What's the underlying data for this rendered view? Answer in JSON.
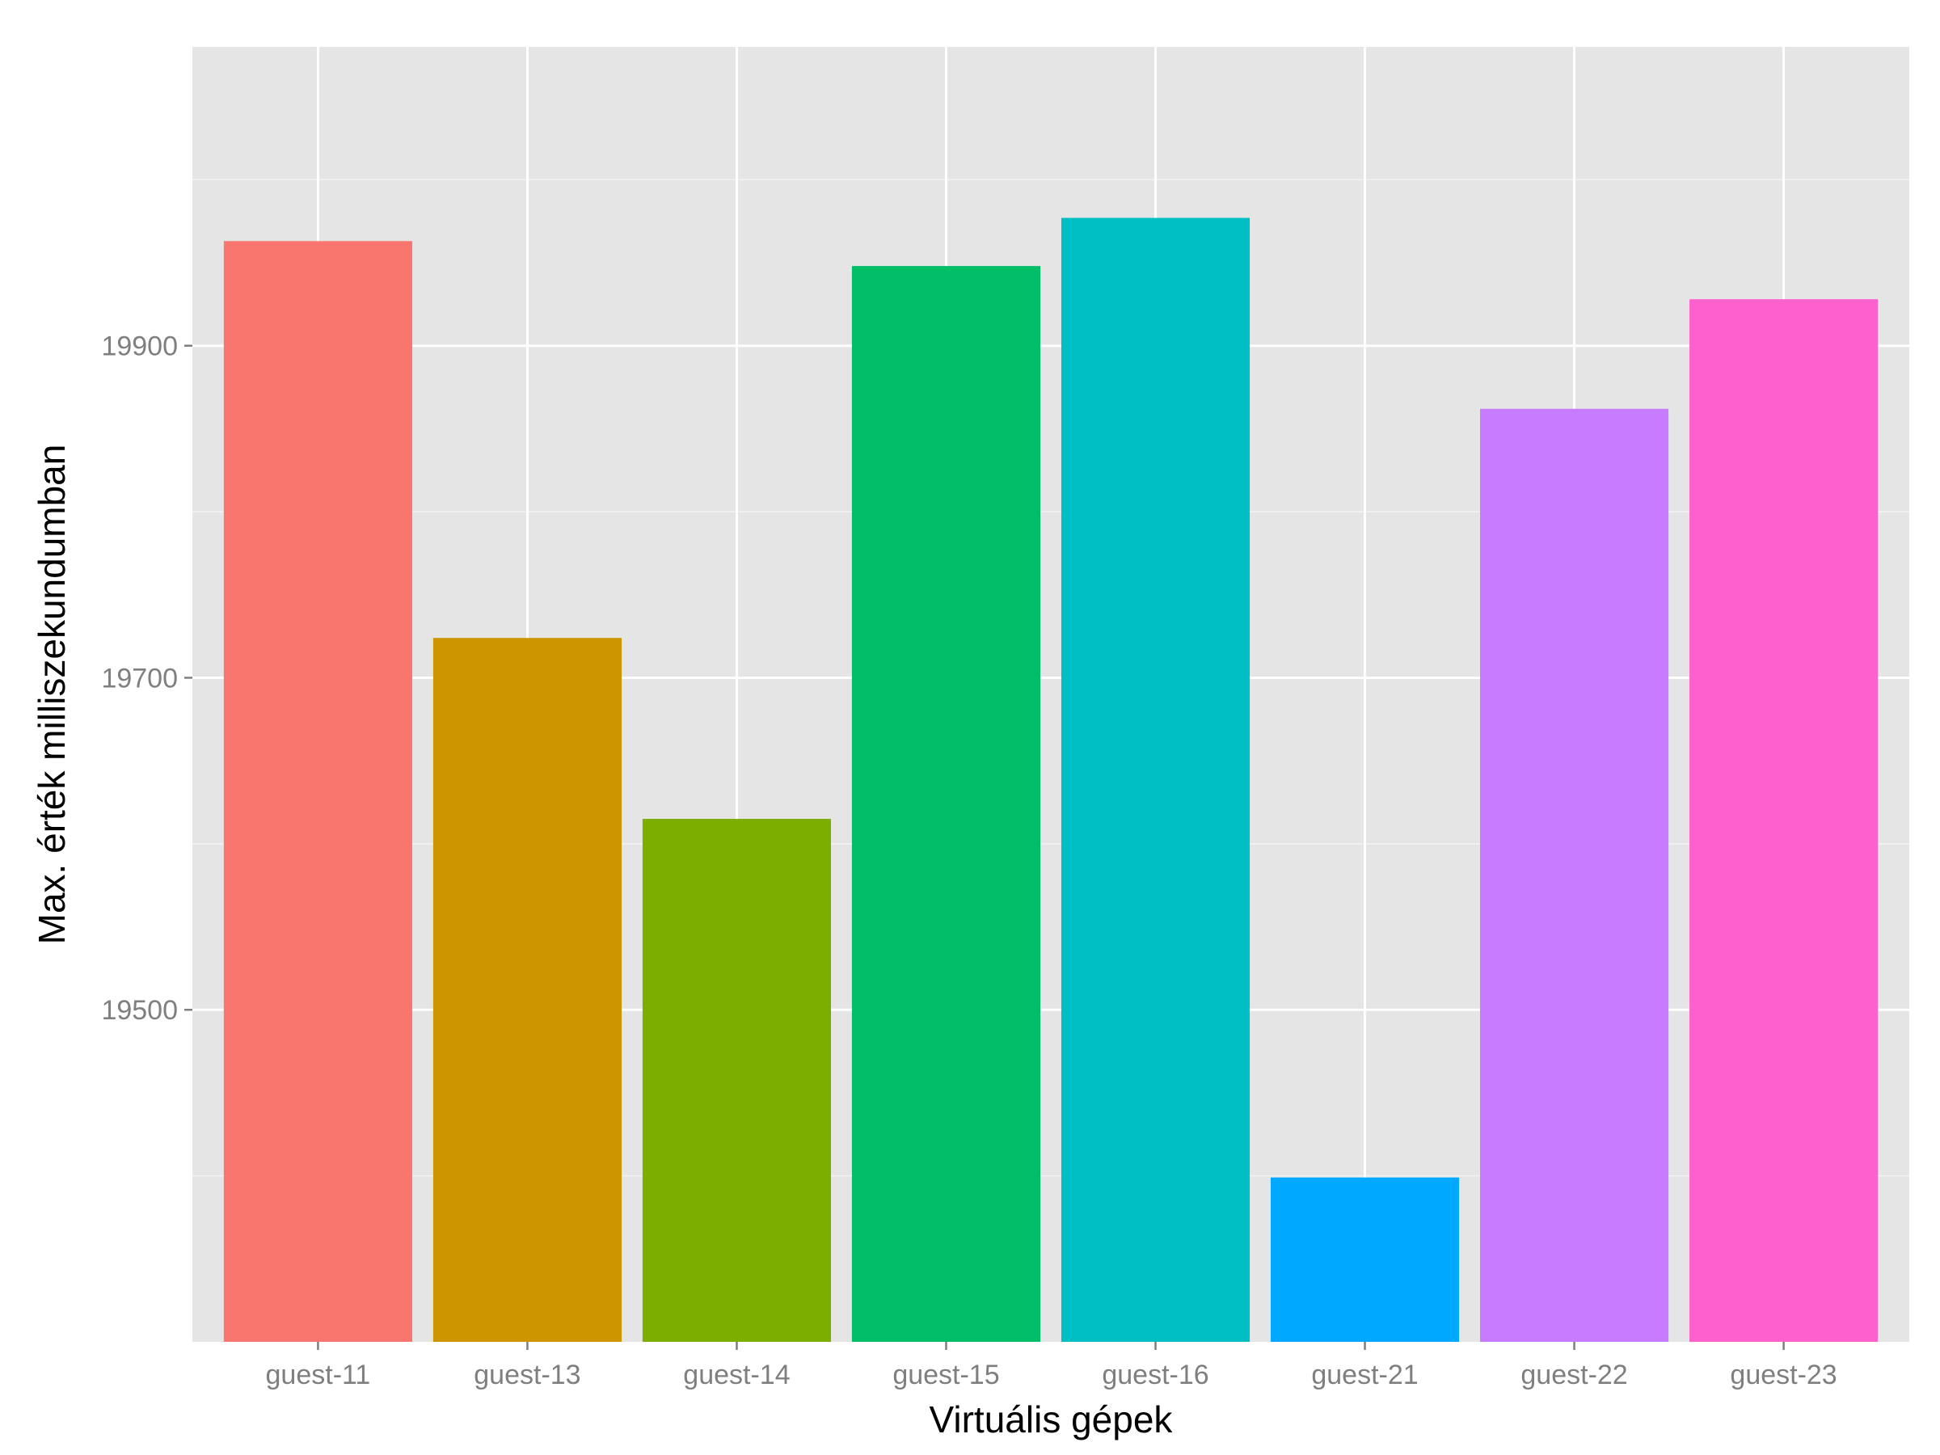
{
  "chart_data": {
    "type": "bar",
    "title": "",
    "xlabel": "Virtuális gépek",
    "ylabel": "Max. érték milliszekundumban",
    "categories": [
      "guest-11",
      "guest-13",
      "guest-14",
      "guest-15",
      "guest-16",
      "guest-21",
      "guest-22",
      "guest-23"
    ],
    "values": [
      19963,
      19724,
      19615,
      19948,
      19977,
      19399,
      19862,
      19928
    ],
    "colors": [
      "#F8766D",
      "#CD9600",
      "#7CAE00",
      "#00BE67",
      "#00BFC4",
      "#00A9FF",
      "#C77CFF",
      "#FF61CC"
    ],
    "ylim": [
      19300,
      20080
    ],
    "yticks": [
      19500,
      19700,
      19900
    ],
    "ytick_labels": [
      "19500",
      "19700",
      "19900"
    ],
    "grid": true,
    "legend": "none",
    "panel_background": "#E5E5E5",
    "grid_color": "#FFFFFF"
  }
}
